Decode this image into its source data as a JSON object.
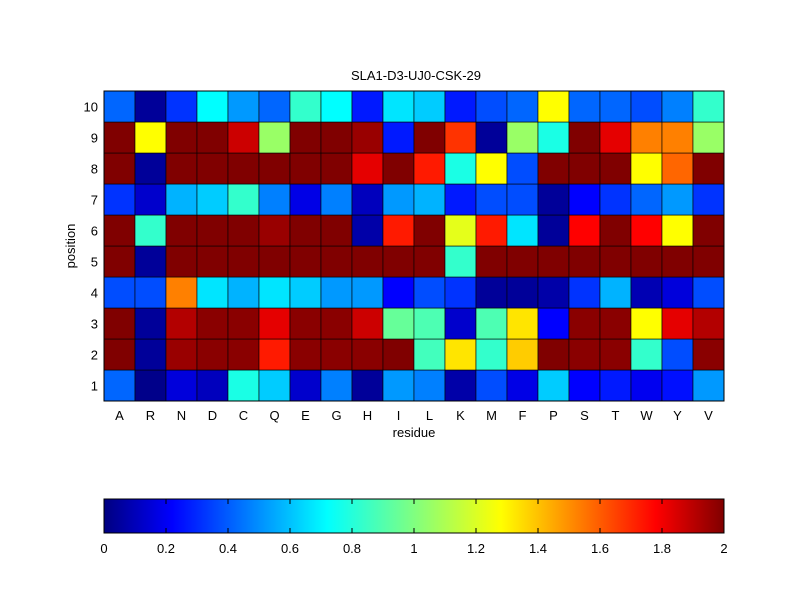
{
  "chart_data": [
    {
      "type": "heatmap",
      "title": "SLA1-D3-UJ0-CSK-29",
      "xlabel": "residue",
      "ylabel": "position",
      "x": [
        "A",
        "R",
        "N",
        "D",
        "C",
        "Q",
        "E",
        "G",
        "H",
        "I",
        "L",
        "K",
        "M",
        "F",
        "P",
        "S",
        "T",
        "W",
        "Y",
        "V"
      ],
      "y": [
        "1",
        "2",
        "3",
        "4",
        "5",
        "6",
        "7",
        "8",
        "9",
        "10"
      ],
      "colormap": "jet",
      "clim": [
        0,
        2
      ],
      "grid": true,
      "values": [
        [
          0.45,
          0.02,
          0.18,
          0.12,
          0.8,
          0.65,
          0.15,
          0.5,
          0.05,
          0.55,
          0.5,
          0.08,
          0.4,
          0.2,
          0.65,
          0.25,
          0.3,
          0.22,
          0.28,
          0.55
        ],
        [
          2.0,
          0.05,
          1.95,
          1.98,
          1.98,
          1.7,
          1.98,
          1.98,
          1.98,
          2.0,
          0.88,
          1.3,
          0.85,
          1.35,
          2.0,
          1.98,
          1.98,
          0.85,
          0.4,
          1.98
        ],
        [
          2.0,
          0.05,
          1.9,
          1.98,
          1.98,
          1.8,
          1.98,
          1.98,
          1.85,
          0.95,
          0.9,
          0.15,
          0.9,
          1.3,
          0.25,
          1.98,
          1.98,
          1.25,
          1.8,
          1.9
        ],
        [
          0.4,
          0.4,
          1.5,
          0.7,
          0.6,
          0.7,
          0.65,
          0.55,
          0.55,
          0.25,
          0.4,
          0.35,
          0.05,
          0.05,
          0.08,
          0.35,
          0.6,
          0.1,
          0.18,
          0.4
        ],
        [
          2.0,
          0.05,
          2.0,
          2.0,
          2.0,
          2.0,
          2.0,
          2.0,
          2.0,
          2.0,
          2.0,
          0.85,
          2.0,
          2.0,
          2.0,
          2.0,
          2.0,
          2.0,
          2.0,
          2.0
        ],
        [
          2.0,
          0.85,
          2.0,
          2.0,
          2.0,
          1.95,
          2.0,
          2.0,
          0.08,
          1.7,
          2.0,
          1.2,
          1.7,
          0.7,
          0.05,
          1.75,
          2.0,
          1.75,
          1.25,
          2.0
        ],
        [
          0.35,
          0.15,
          0.6,
          0.65,
          0.85,
          0.5,
          0.2,
          0.5,
          0.12,
          0.55,
          0.6,
          0.3,
          0.4,
          0.4,
          0.05,
          0.25,
          0.35,
          0.45,
          0.55,
          0.35
        ],
        [
          2.0,
          0.05,
          2.0,
          2.0,
          2.0,
          2.0,
          2.0,
          2.0,
          1.8,
          2.0,
          1.7,
          0.8,
          1.25,
          0.4,
          2.0,
          2.0,
          2.0,
          1.25,
          1.55,
          2.0
        ],
        [
          2.0,
          1.25,
          2.0,
          2.0,
          1.85,
          1.05,
          2.0,
          2.0,
          1.95,
          0.3,
          2.0,
          1.65,
          0.05,
          1.05,
          0.8,
          2.0,
          1.8,
          1.5,
          1.5,
          1.05
        ],
        [
          0.45,
          0.05,
          0.35,
          0.75,
          0.55,
          0.45,
          0.85,
          0.75,
          0.3,
          0.7,
          0.65,
          0.3,
          0.4,
          0.45,
          1.25,
          0.45,
          0.45,
          0.4,
          0.5,
          0.85
        ]
      ]
    },
    {
      "type": "colorbar",
      "orientation": "horizontal",
      "range": [
        0,
        2
      ],
      "ticks": [
        "0",
        "0.2",
        "0.4",
        "0.6",
        "0.8",
        "1",
        "1.2",
        "1.4",
        "1.6",
        "1.8",
        "2"
      ]
    }
  ]
}
